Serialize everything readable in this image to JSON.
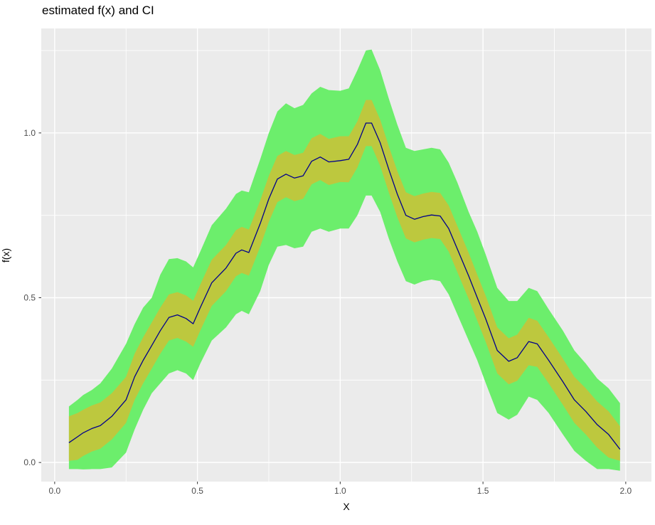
{
  "title": "estimated f(x) and CI",
  "colors": {
    "background": "#FFFFFF",
    "panel": "#EBEBEB",
    "grid": "#FFFFFF",
    "outer_band": "#6CEE6C",
    "inner_band": "#BDC83E",
    "line": "#00008B",
    "tick_text": "#4D4D4D",
    "title_text": "#000000"
  },
  "chart_data": {
    "type": "area",
    "title": "estimated f(x) and CI",
    "xlabel": "X",
    "ylabel": "f(x)",
    "grid": true,
    "legend_position": "none",
    "xlim": [
      -0.047,
      2.09
    ],
    "ylim": [
      -0.058,
      1.317
    ],
    "x_ticks": [
      0.0,
      0.5,
      1.0,
      1.5,
      2.0
    ],
    "x_tick_labels": [
      "0.0",
      "0.5",
      "1.0",
      "1.5",
      "2.0"
    ],
    "y_ticks": [
      0.0,
      0.5,
      1.0
    ],
    "y_tick_labels": [
      "0.0",
      "0.5",
      "1.0"
    ],
    "x_minor_ticks": [
      0.25,
      0.75,
      1.25,
      1.75
    ],
    "y_minor_ticks": [
      0.25,
      0.75,
      1.25
    ],
    "series": [
      {
        "name": "outer CI band (wide, green)",
        "geom": "ribbon",
        "upper_key": "upper2",
        "lower_key": "lower2"
      },
      {
        "name": "inner CI band (narrow, olive)",
        "geom": "ribbon",
        "upper_key": "upper1",
        "lower_key": "lower1"
      },
      {
        "name": "estimated f(x)",
        "geom": "line",
        "value_key": "f"
      }
    ],
    "x": [
      0.05,
      0.08,
      0.1,
      0.13,
      0.16,
      0.2,
      0.25,
      0.28,
      0.31,
      0.34,
      0.37,
      0.4,
      0.43,
      0.46,
      0.485,
      0.51,
      0.55,
      0.6,
      0.635,
      0.655,
      0.68,
      0.72,
      0.75,
      0.78,
      0.81,
      0.84,
      0.87,
      0.9,
      0.93,
      0.96,
      1.0,
      1.03,
      1.06,
      1.09,
      1.11,
      1.14,
      1.17,
      1.2,
      1.23,
      1.26,
      1.29,
      1.32,
      1.35,
      1.38,
      1.41,
      1.45,
      1.48,
      1.51,
      1.55,
      1.59,
      1.62,
      1.66,
      1.69,
      1.73,
      1.78,
      1.82,
      1.86,
      1.9,
      1.94,
      1.98
    ],
    "f": [
      0.06,
      0.078,
      0.09,
      0.103,
      0.112,
      0.14,
      0.19,
      0.26,
      0.31,
      0.355,
      0.4,
      0.44,
      0.448,
      0.437,
      0.421,
      0.47,
      0.545,
      0.59,
      0.635,
      0.645,
      0.637,
      0.725,
      0.8,
      0.86,
      0.875,
      0.863,
      0.87,
      0.914,
      0.927,
      0.912,
      0.916,
      0.92,
      0.965,
      1.03,
      1.03,
      0.97,
      0.89,
      0.814,
      0.75,
      0.738,
      0.746,
      0.751,
      0.748,
      0.71,
      0.648,
      0.566,
      0.5,
      0.435,
      0.34,
      0.307,
      0.318,
      0.367,
      0.36,
      0.31,
      0.245,
      0.19,
      0.155,
      0.115,
      0.085,
      0.04
    ],
    "upper1": [
      0.14,
      0.15,
      0.16,
      0.173,
      0.182,
      0.21,
      0.26,
      0.33,
      0.38,
      0.425,
      0.47,
      0.51,
      0.517,
      0.507,
      0.491,
      0.54,
      0.615,
      0.66,
      0.705,
      0.715,
      0.707,
      0.795,
      0.87,
      0.93,
      0.945,
      0.933,
      0.94,
      0.984,
      0.997,
      0.982,
      0.99,
      0.99,
      1.035,
      1.1,
      1.1,
      1.04,
      0.96,
      0.884,
      0.82,
      0.808,
      0.816,
      0.821,
      0.818,
      0.78,
      0.718,
      0.636,
      0.57,
      0.505,
      0.41,
      0.377,
      0.388,
      0.439,
      0.43,
      0.38,
      0.315,
      0.26,
      0.225,
      0.185,
      0.155,
      0.11
    ],
    "lower1": [
      0.005,
      0.008,
      0.02,
      0.033,
      0.042,
      0.07,
      0.12,
      0.19,
      0.24,
      0.285,
      0.33,
      0.37,
      0.378,
      0.367,
      0.351,
      0.4,
      0.475,
      0.52,
      0.565,
      0.575,
      0.567,
      0.655,
      0.73,
      0.79,
      0.805,
      0.793,
      0.8,
      0.844,
      0.857,
      0.842,
      0.851,
      0.85,
      0.895,
      0.96,
      0.96,
      0.9,
      0.82,
      0.744,
      0.68,
      0.668,
      0.676,
      0.681,
      0.678,
      0.64,
      0.578,
      0.496,
      0.43,
      0.365,
      0.27,
      0.237,
      0.248,
      0.295,
      0.29,
      0.24,
      0.175,
      0.12,
      0.085,
      0.045,
      0.015,
      0.005
    ],
    "upper2": [
      0.17,
      0.19,
      0.205,
      0.22,
      0.24,
      0.285,
      0.36,
      0.42,
      0.47,
      0.5,
      0.57,
      0.617,
      0.62,
      0.61,
      0.592,
      0.64,
      0.72,
      0.77,
      0.815,
      0.825,
      0.82,
      0.92,
      1.0,
      1.065,
      1.09,
      1.075,
      1.085,
      1.12,
      1.14,
      1.13,
      1.128,
      1.135,
      1.19,
      1.25,
      1.253,
      1.19,
      1.105,
      1.025,
      0.955,
      0.945,
      0.95,
      0.955,
      0.95,
      0.91,
      0.85,
      0.76,
      0.7,
      0.63,
      0.53,
      0.49,
      0.49,
      0.53,
      0.52,
      0.465,
      0.4,
      0.34,
      0.3,
      0.255,
      0.225,
      0.18
    ],
    "lower2": [
      -0.02,
      -0.02,
      -0.021,
      -0.02,
      -0.02,
      -0.015,
      0.03,
      0.1,
      0.16,
      0.21,
      0.24,
      0.27,
      0.28,
      0.27,
      0.25,
      0.3,
      0.37,
      0.41,
      0.45,
      0.46,
      0.45,
      0.52,
      0.6,
      0.655,
      0.66,
      0.65,
      0.655,
      0.7,
      0.71,
      0.7,
      0.71,
      0.71,
      0.75,
      0.81,
      0.81,
      0.76,
      0.68,
      0.61,
      0.55,
      0.54,
      0.55,
      0.555,
      0.55,
      0.51,
      0.45,
      0.37,
      0.31,
      0.24,
      0.15,
      0.13,
      0.145,
      0.2,
      0.19,
      0.15,
      0.085,
      0.035,
      0.005,
      -0.02,
      -0.02,
      -0.025
    ]
  }
}
